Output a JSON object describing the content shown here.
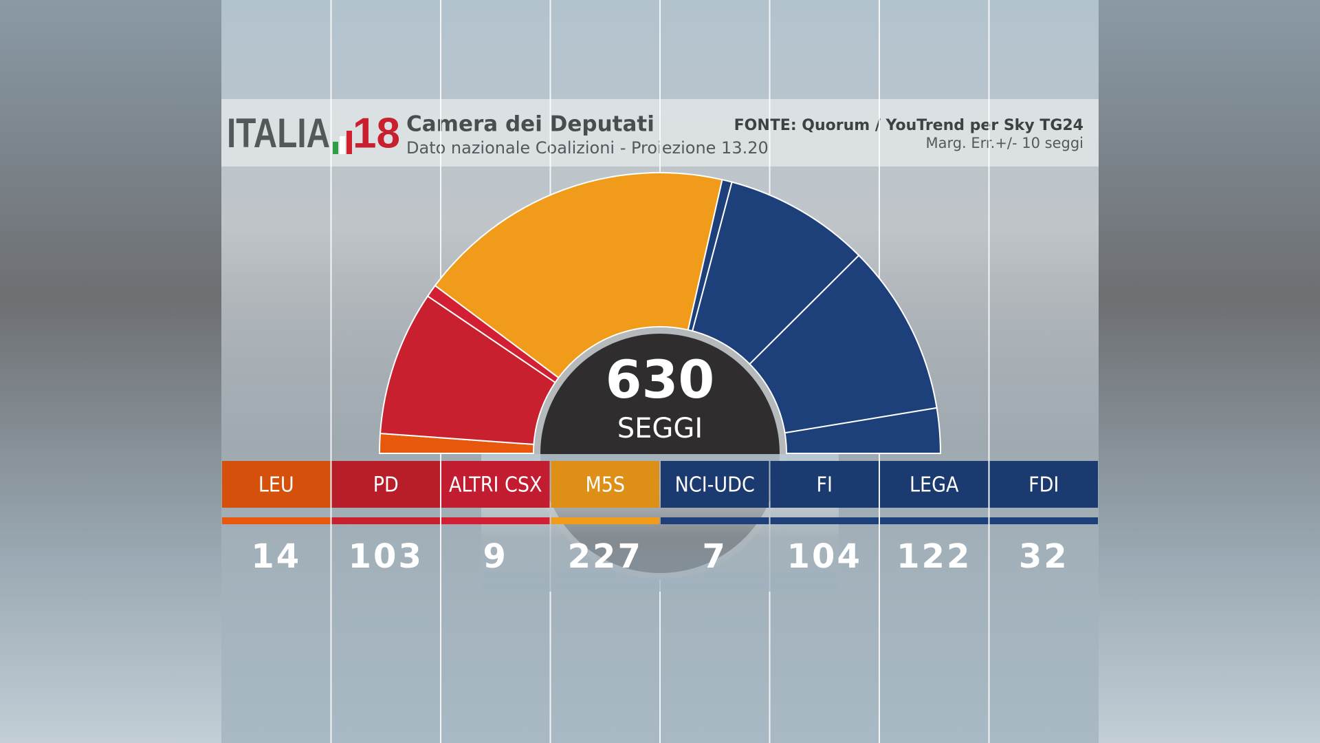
{
  "chart_data": {
    "type": "parliament",
    "logo": "ITALIA",
    "logo_year": "18",
    "title": "Camera dei Deputati",
    "subtitle": "Dato nazionale Coalizioni - Proiezione 13.20",
    "source": "FONTE: Quorum / YouTrend per Sky TG24",
    "note": "Marg. Err.+/- 10 seggi",
    "total": 630,
    "total_label": "SEGGI",
    "categories": [
      "LEU",
      "PD",
      "ALTRI CSX",
      "M5S",
      "NCI-UDC",
      "FI",
      "LEGA",
      "FDI"
    ],
    "values": [
      14,
      103,
      9,
      227,
      7,
      104,
      122,
      32
    ],
    "colors": [
      "#e8580c",
      "#c8202e",
      "#d21f33",
      "#f09c1a",
      "#1d3f7a",
      "#1d3f7a",
      "#1d3f7a",
      "#1d3f7a"
    ]
  }
}
